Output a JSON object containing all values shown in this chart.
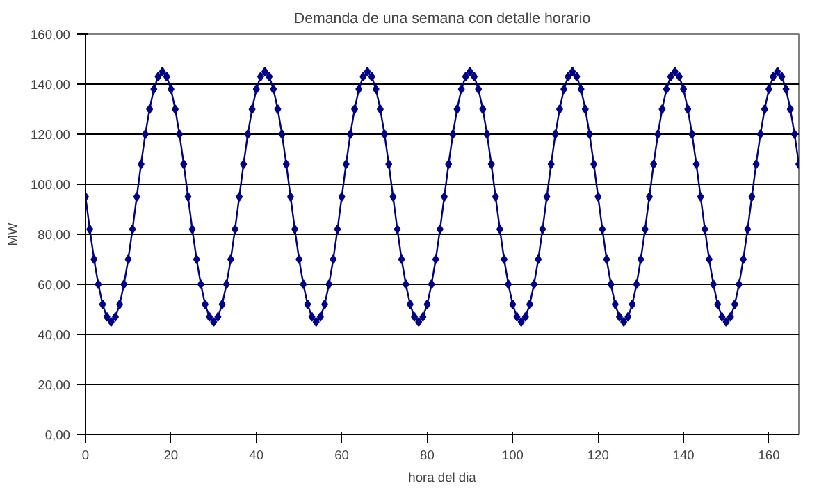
{
  "chart_data": {
    "type": "line",
    "title": "Demanda de una semana con detalle horario",
    "xlabel": "hora del dia",
    "ylabel": "MW",
    "x": [
      0,
      1,
      2,
      3,
      4,
      5,
      6,
      7,
      8,
      9,
      10,
      11,
      12,
      13,
      14,
      15,
      16,
      17,
      18,
      19,
      20,
      21,
      22,
      23,
      24,
      25,
      26,
      27,
      28,
      29,
      30,
      31,
      32,
      33,
      34,
      35,
      36,
      37,
      38,
      39,
      40,
      41,
      42,
      43,
      44,
      45,
      46,
      47,
      48,
      49,
      50,
      51,
      52,
      53,
      54,
      55,
      56,
      57,
      58,
      59,
      60,
      61,
      62,
      63,
      64,
      65,
      66,
      67,
      68,
      69,
      70,
      71,
      72,
      73,
      74,
      75,
      76,
      77,
      78,
      79,
      80,
      81,
      82,
      83,
      84,
      85,
      86,
      87,
      88,
      89,
      90,
      91,
      92,
      93,
      94,
      95,
      96,
      97,
      98,
      99,
      100,
      101,
      102,
      103,
      104,
      105,
      106,
      107,
      108,
      109,
      110,
      111,
      112,
      113,
      114,
      115,
      116,
      117,
      118,
      119,
      120,
      121,
      122,
      123,
      124,
      125,
      126,
      127,
      128,
      129,
      130,
      131,
      132,
      133,
      134,
      135,
      136,
      137,
      138,
      139,
      140,
      141,
      142,
      143,
      144,
      145,
      146,
      147,
      148,
      149,
      150,
      151,
      152,
      153,
      154,
      155,
      156,
      157,
      158,
      159,
      160,
      161,
      162,
      163,
      164,
      165,
      166,
      167
    ],
    "series": [
      {
        "color": "#000080",
        "values": [
          95,
          82,
          70,
          60,
          52,
          47,
          45,
          47,
          52,
          60,
          70,
          82,
          95,
          108,
          120,
          130,
          138,
          143,
          145,
          143,
          138,
          130,
          120,
          108,
          95,
          82,
          70,
          60,
          52,
          47,
          45,
          47,
          52,
          60,
          70,
          82,
          95,
          108,
          120,
          130,
          138,
          143,
          145,
          143,
          138,
          130,
          120,
          108,
          95,
          82,
          70,
          60,
          52,
          47,
          45,
          47,
          52,
          60,
          70,
          82,
          95,
          108,
          120,
          130,
          138,
          143,
          145,
          143,
          138,
          130,
          120,
          108,
          95,
          82,
          70,
          60,
          52,
          47,
          45,
          47,
          52,
          60,
          70,
          82,
          95,
          108,
          120,
          130,
          138,
          143,
          145,
          143,
          138,
          130,
          120,
          108,
          95,
          82,
          70,
          60,
          52,
          47,
          45,
          47,
          52,
          60,
          70,
          82,
          95,
          108,
          120,
          130,
          138,
          143,
          145,
          143,
          138,
          130,
          120,
          108,
          95,
          82,
          70,
          60,
          52,
          47,
          45,
          47,
          52,
          60,
          70,
          82,
          95,
          108,
          120,
          130,
          138,
          143,
          145,
          143,
          138,
          130,
          120,
          108,
          95,
          82,
          70,
          60,
          52,
          47,
          45,
          47,
          52,
          60,
          70,
          82,
          95,
          108,
          120,
          130,
          138,
          143,
          145,
          143,
          138,
          130,
          120,
          108
        ]
      }
    ],
    "xlim": [
      0,
      167
    ],
    "ylim": [
      0,
      160
    ],
    "xticks": [
      0,
      20,
      40,
      60,
      80,
      100,
      120,
      140,
      160
    ],
    "yticks": [
      {
        "value": 0,
        "label": "0,00"
      },
      {
        "value": 20,
        "label": "20,00"
      },
      {
        "value": 40,
        "label": "40,00"
      },
      {
        "value": 60,
        "label": "60,00"
      },
      {
        "value": 80,
        "label": "80,00"
      },
      {
        "value": 100,
        "label": "100,00"
      },
      {
        "value": 120,
        "label": "120,00"
      },
      {
        "value": 140,
        "label": "140,00"
      },
      {
        "value": 160,
        "label": "160,00"
      }
    ],
    "grid": "y",
    "marker": "diamond",
    "line_style": "solid"
  }
}
